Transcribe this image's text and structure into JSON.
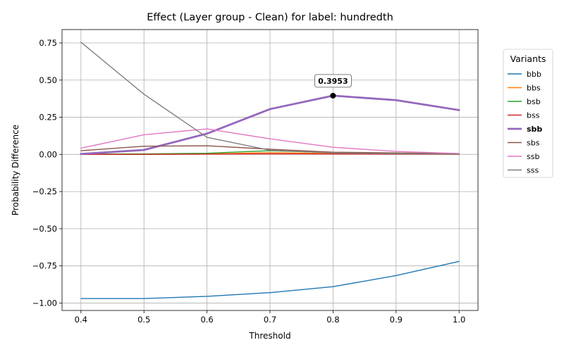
{
  "chart_data": {
    "type": "line",
    "title": "Effect (Layer group - Clean) for label: hundredth",
    "xlabel": "Threshold",
    "ylabel": "Probability Difference",
    "xlim": [
      0.37,
      1.03
    ],
    "ylim": [
      -1.05,
      0.84
    ],
    "grid": true,
    "x": [
      0.4,
      0.5,
      0.6,
      0.7,
      0.8,
      0.9,
      1.0
    ],
    "x_ticks": [
      "0.4",
      "0.5",
      "0.6",
      "0.7",
      "0.8",
      "0.9",
      "1.0"
    ],
    "y_tick_values": [
      -1.0,
      -0.75,
      -0.5,
      -0.25,
      0.0,
      0.25,
      0.5,
      0.75
    ],
    "y_ticks": [
      "−1.00",
      "−0.75",
      "−0.50",
      "−0.25",
      "0.00",
      "0.25",
      "0.50",
      "0.75"
    ],
    "legend": {
      "title": "Variants",
      "position": "outside-right"
    },
    "highlighted_series": "sbb",
    "annotation": {
      "x": 0.8,
      "y": 0.3953,
      "text": "0.3953"
    },
    "series": [
      {
        "name": "bbb",
        "color": "#1f77b4",
        "values": [
          -0.97,
          -0.97,
          -0.955,
          -0.93,
          -0.89,
          -0.815,
          -0.72
        ]
      },
      {
        "name": "bbs",
        "color": "#ff7f0e",
        "values": [
          0.0,
          0.0,
          0.003,
          0.012,
          0.006,
          0.003,
          0.001
        ]
      },
      {
        "name": "bsb",
        "color": "#2ca02c",
        "values": [
          0.002,
          0.003,
          0.008,
          0.025,
          0.012,
          0.007,
          0.003
        ]
      },
      {
        "name": "bss",
        "color": "#d62728",
        "values": [
          0.0,
          0.0,
          0.002,
          0.004,
          0.003,
          0.002,
          0.001
        ]
      },
      {
        "name": "sbb",
        "color": "#9467bd",
        "values": [
          0.003,
          0.03,
          0.14,
          0.305,
          0.3953,
          0.365,
          0.298
        ]
      },
      {
        "name": "sbs",
        "color": "#8c564b",
        "values": [
          0.025,
          0.055,
          0.058,
          0.035,
          0.015,
          0.01,
          0.005
        ]
      },
      {
        "name": "ssb",
        "color": "#e377c2",
        "values": [
          0.042,
          0.132,
          0.172,
          0.105,
          0.048,
          0.02,
          0.006
        ]
      },
      {
        "name": "sss",
        "color": "#7f7f7f",
        "values": [
          0.755,
          0.405,
          0.115,
          0.028,
          0.01,
          0.005,
          0.002
        ]
      }
    ]
  }
}
